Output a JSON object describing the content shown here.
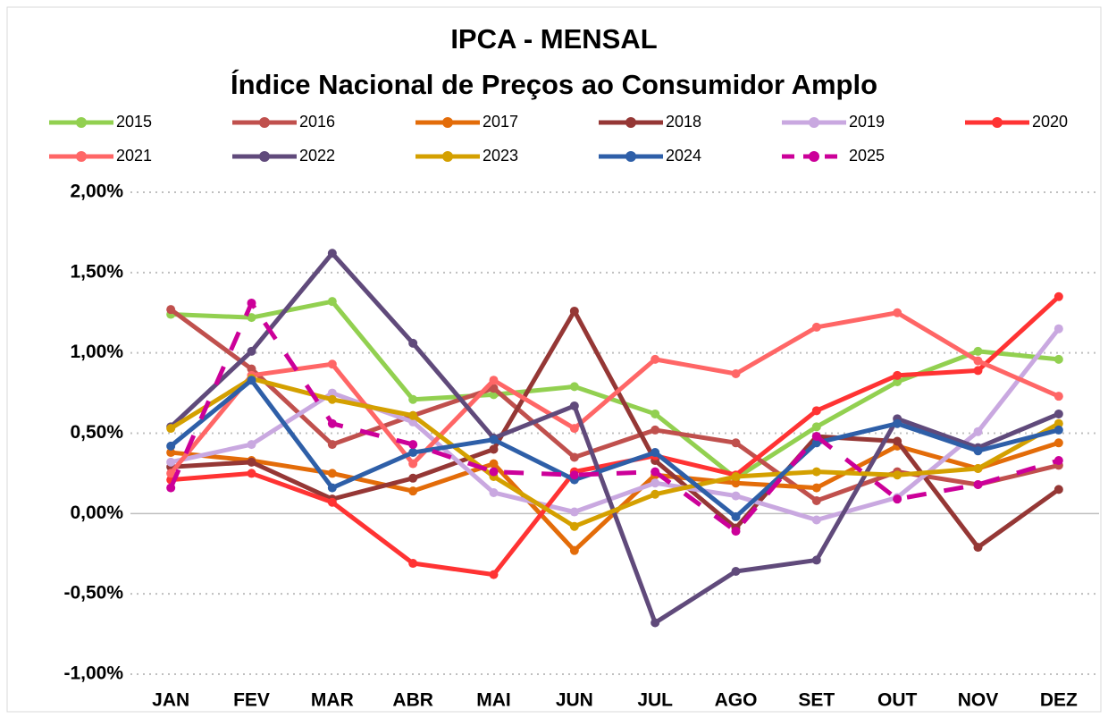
{
  "chart_data": {
    "type": "line",
    "title": "IPCA - MENSAL",
    "subtitle": "Índice Nacional de Preços ao Consumidor Amplo",
    "categories": [
      "JAN",
      "FEV",
      "MAR",
      "ABR",
      "MAI",
      "JUN",
      "JUL",
      "AGO",
      "SET",
      "OUT",
      "NOV",
      "DEZ"
    ],
    "series": [
      {
        "name": "2015",
        "color": "#92d050",
        "values": [
          1.24,
          1.22,
          1.32,
          0.71,
          0.74,
          0.79,
          0.62,
          0.22,
          0.54,
          0.82,
          1.01,
          0.96
        ]
      },
      {
        "name": "2016",
        "color": "#c0504d",
        "values": [
          1.27,
          0.9,
          0.43,
          0.61,
          0.78,
          0.35,
          0.52,
          0.44,
          0.08,
          0.26,
          0.18,
          0.3
        ]
      },
      {
        "name": "2017",
        "color": "#e36c09",
        "values": [
          0.38,
          0.33,
          0.25,
          0.14,
          0.31,
          -0.23,
          0.24,
          0.19,
          0.16,
          0.42,
          0.28,
          0.44
        ]
      },
      {
        "name": "2018",
        "color": "#953735",
        "values": [
          0.29,
          0.32,
          0.09,
          0.22,
          0.4,
          1.26,
          0.33,
          -0.09,
          0.48,
          0.45,
          -0.21,
          0.15
        ]
      },
      {
        "name": "2019",
        "color": "#c9a8e0",
        "values": [
          0.32,
          0.43,
          0.75,
          0.57,
          0.13,
          0.01,
          0.19,
          0.11,
          -0.04,
          0.1,
          0.51,
          1.15
        ]
      },
      {
        "name": "2020",
        "color": "#ff3333",
        "values": [
          0.21,
          0.25,
          0.07,
          -0.31,
          -0.38,
          0.26,
          0.36,
          0.24,
          0.64,
          0.86,
          0.89,
          1.35
        ]
      },
      {
        "name": "2021",
        "color": "#ff6666",
        "values": [
          0.25,
          0.86,
          0.93,
          0.31,
          0.83,
          0.53,
          0.96,
          0.87,
          1.16,
          1.25,
          0.95,
          0.73
        ]
      },
      {
        "name": "2022",
        "color": "#604a7b",
        "values": [
          0.54,
          1.01,
          1.62,
          1.06,
          0.47,
          0.67,
          -0.68,
          -0.36,
          -0.29,
          0.59,
          0.41,
          0.62
        ]
      },
      {
        "name": "2023",
        "color": "#d4a000",
        "values": [
          0.53,
          0.84,
          0.71,
          0.61,
          0.23,
          -0.08,
          0.12,
          0.23,
          0.26,
          0.24,
          0.28,
          0.56
        ]
      },
      {
        "name": "2024",
        "color": "#2e5fa8",
        "values": [
          0.42,
          0.83,
          0.16,
          0.38,
          0.46,
          0.21,
          0.38,
          -0.02,
          0.44,
          0.56,
          0.39,
          0.52
        ]
      },
      {
        "name": "2025",
        "color": "#cc0099",
        "dashed": true,
        "values": [
          0.16,
          1.31,
          0.56,
          0.43,
          0.26,
          0.24,
          0.26,
          -0.11,
          0.48,
          0.09,
          0.18,
          0.33
        ]
      }
    ],
    "ylim": [
      -1,
      2
    ],
    "yticks": [
      {
        "value": -1,
        "label": "-1,00%"
      },
      {
        "value": -0.5,
        "label": "-0,50%"
      },
      {
        "value": 0,
        "label": "0,00%"
      },
      {
        "value": 0.5,
        "label": "0,50%"
      },
      {
        "value": 1,
        "label": "1,00%"
      },
      {
        "value": 1.5,
        "label": "1,50%"
      },
      {
        "value": 2,
        "label": "2,00%"
      }
    ],
    "grid": true,
    "markers": true,
    "legend": "top"
  }
}
